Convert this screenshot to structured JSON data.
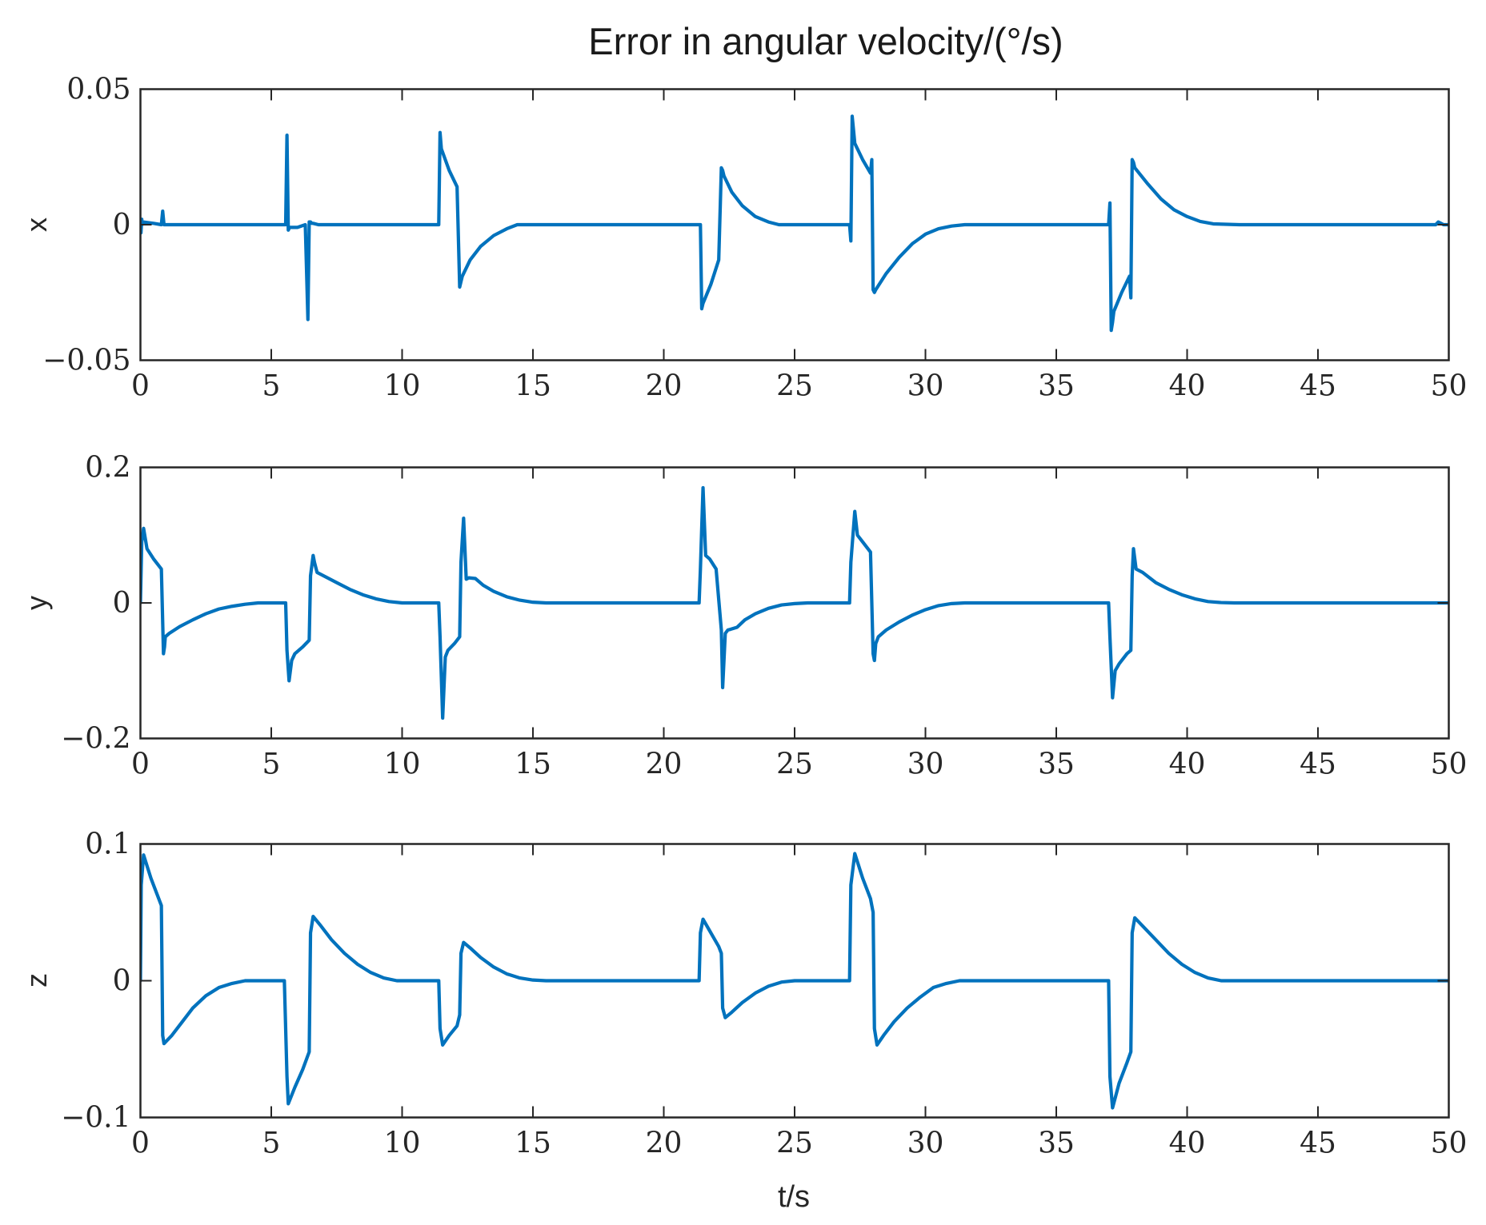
{
  "chart_data": [
    {
      "type": "line",
      "title": "Error in angular velocity/(°/s)",
      "xlabel": "",
      "ylabel": "x",
      "xlim": [
        0,
        50
      ],
      "ylim": [
        -0.05,
        0.05
      ],
      "xticks": [
        0,
        5,
        10,
        15,
        20,
        25,
        30,
        35,
        40,
        45,
        50
      ],
      "xtick_labels": [
        "0",
        "5",
        "10",
        "15",
        "20",
        "25",
        "30",
        "35",
        "40",
        "45",
        "50"
      ],
      "yticks": [
        -0.05,
        0,
        0.05
      ],
      "ytick_labels": [
        "−0.05",
        "0",
        "0.05"
      ],
      "grid": false,
      "series": [
        {
          "color": "#0072bd",
          "x": [
            0,
            0.02,
            0.05,
            0.06,
            0.1,
            0.5,
            0.8,
            0.85,
            0.9,
            0.95,
            1.0,
            1.5,
            3,
            5,
            5.55,
            5.6,
            5.65,
            5.7,
            6.0,
            6.3,
            6.4,
            6.45,
            6.5,
            6.55,
            6.6,
            6.8,
            7.5,
            9,
            11.4,
            11.45,
            11.5,
            11.8,
            12.1,
            12.2,
            12.25,
            12.3,
            12.6,
            13.0,
            13.5,
            14.0,
            14.4,
            15,
            18,
            21.4,
            21.45,
            21.5,
            21.8,
            22.1,
            22.2,
            22.25,
            22.3,
            22.6,
            23.0,
            23.5,
            24.0,
            24.4,
            25,
            27.1,
            27.15,
            27.2,
            27.25,
            27.3,
            27.6,
            27.9,
            27.95,
            28.0,
            28.05,
            28.1,
            28.5,
            29.0,
            29.5,
            30.0,
            30.5,
            31.0,
            31.5,
            32,
            35,
            37.0,
            37.05,
            37.1,
            37.15,
            37.2,
            37.5,
            37.8,
            37.85,
            37.9,
            37.95,
            38.0,
            38.5,
            39.0,
            39.5,
            40.0,
            40.5,
            41.0,
            42,
            45,
            49.5,
            49.6,
            49.8,
            50
          ],
          "y": [
            0,
            -0.003,
            0.002,
            0,
            0.001,
            0.0005,
            0,
            0.005,
            0,
            0,
            0,
            0,
            0,
            0,
            0,
            0.033,
            -0.002,
            -0.001,
            -0.001,
            0,
            -0.035,
            0.001,
            0.001,
            0.0005,
            0.0005,
            0,
            0,
            0,
            0,
            0.034,
            0.028,
            0.02,
            0.014,
            -0.023,
            -0.021,
            -0.019,
            -0.013,
            -0.008,
            -0.004,
            -0.0015,
            0,
            0,
            0,
            0,
            -0.031,
            -0.029,
            -0.022,
            -0.013,
            0.021,
            0.02,
            0.018,
            0.012,
            0.007,
            0.003,
            0.001,
            0,
            0,
            0,
            -0.006,
            0.04,
            0.035,
            0.03,
            0.024,
            0.019,
            0.024,
            -0.024,
            -0.025,
            -0.024,
            -0.018,
            -0.012,
            -0.007,
            -0.0035,
            -0.0015,
            -0.0005,
            0,
            0,
            0,
            0,
            0.008,
            -0.039,
            -0.036,
            -0.032,
            -0.025,
            -0.019,
            -0.027,
            0.024,
            0.023,
            0.021,
            0.015,
            0.0095,
            0.0055,
            0.003,
            0.0012,
            0.0003,
            0,
            0,
            0,
            0.001,
            0,
            0
          ]
        }
      ]
    },
    {
      "type": "line",
      "xlabel": "",
      "ylabel": "y",
      "xlim": [
        0,
        50
      ],
      "ylim": [
        -0.2,
        0.2
      ],
      "xticks": [
        0,
        5,
        10,
        15,
        20,
        25,
        30,
        35,
        40,
        45,
        50
      ],
      "xtick_labels": [
        "0",
        "5",
        "10",
        "15",
        "20",
        "25",
        "30",
        "35",
        "40",
        "45",
        "50"
      ],
      "yticks": [
        -0.2,
        0,
        0.2
      ],
      "ytick_labels": [
        "−0.2",
        "0",
        "0.2"
      ],
      "grid": false,
      "series": [
        {
          "color": "#0072bd",
          "x": [
            0,
            0.05,
            0.12,
            0.25,
            0.5,
            0.8,
            0.88,
            0.92,
            0.95,
            1.1,
            1.5,
            2.0,
            2.5,
            3.0,
            3.5,
            4.0,
            4.5,
            5.0,
            5.55,
            5.6,
            5.68,
            5.78,
            5.9,
            6.2,
            6.45,
            6.5,
            6.6,
            6.65,
            6.75,
            7.0,
            7.5,
            8.0,
            8.5,
            9.0,
            9.5,
            10.0,
            11.4,
            11.45,
            11.55,
            11.65,
            11.75,
            12.0,
            12.2,
            12.25,
            12.35,
            12.45,
            12.55,
            12.8,
            13.1,
            13.5,
            14.0,
            14.5,
            15.0,
            15.5,
            21.35,
            21.4,
            21.5,
            21.6,
            21.75,
            22.0,
            22.2,
            22.25,
            22.35,
            22.45,
            22.55,
            22.8,
            23.1,
            23.5,
            24.0,
            24.5,
            25.0,
            25.5,
            27.1,
            27.15,
            27.3,
            27.4,
            27.6,
            27.9,
            28.0,
            28.05,
            28.1,
            28.2,
            28.5,
            29.0,
            29.5,
            30.0,
            30.5,
            31.0,
            31.5,
            32.0,
            37.0,
            37.05,
            37.15,
            37.25,
            37.4,
            37.7,
            37.85,
            37.9,
            37.95,
            38.05,
            38.3,
            38.8,
            39.3,
            39.8,
            40.3,
            40.8,
            41.3,
            41.8,
            50
          ],
          "y": [
            0,
            0.09,
            0.11,
            0.08,
            0.065,
            0.05,
            -0.075,
            -0.065,
            -0.05,
            -0.045,
            -0.035,
            -0.025,
            -0.016,
            -0.009,
            -0.005,
            -0.002,
            0,
            0,
            0,
            -0.07,
            -0.115,
            -0.085,
            -0.075,
            -0.065,
            -0.055,
            0.04,
            0.07,
            0.06,
            0.045,
            0.04,
            0.03,
            0.02,
            0.012,
            0.006,
            0.002,
            0,
            0,
            -0.05,
            -0.17,
            -0.08,
            -0.07,
            -0.06,
            -0.05,
            0.06,
            0.125,
            0.035,
            0.037,
            0.036,
            0.026,
            0.017,
            0.009,
            0.004,
            0.001,
            0,
            0,
            0.05,
            0.17,
            0.07,
            0.065,
            0.05,
            -0.04,
            -0.125,
            -0.045,
            -0.04,
            -0.039,
            -0.036,
            -0.025,
            -0.016,
            -0.008,
            -0.003,
            -0.001,
            0,
            0,
            0.06,
            0.135,
            0.1,
            0.09,
            0.075,
            -0.075,
            -0.085,
            -0.06,
            -0.05,
            -0.04,
            -0.028,
            -0.018,
            -0.01,
            -0.004,
            -0.001,
            0,
            0,
            0,
            -0.05,
            -0.14,
            -0.1,
            -0.09,
            -0.075,
            -0.07,
            0.04,
            0.08,
            0.05,
            0.045,
            0.03,
            0.02,
            0.012,
            0.006,
            0.002,
            0.0005,
            0,
            0
          ]
        }
      ]
    },
    {
      "type": "line",
      "xlabel": "t/s",
      "ylabel": "z",
      "xlim": [
        0,
        50
      ],
      "ylim": [
        -0.1,
        0.1
      ],
      "xticks": [
        0,
        5,
        10,
        15,
        20,
        25,
        30,
        35,
        40,
        45,
        50
      ],
      "xtick_labels": [
        "0",
        "5",
        "10",
        "15",
        "20",
        "25",
        "30",
        "35",
        "40",
        "45",
        "50"
      ],
      "yticks": [
        -0.1,
        0,
        0.1
      ],
      "ytick_labels": [
        "−0.1",
        "0",
        "0.1"
      ],
      "grid": false,
      "series": [
        {
          "color": "#0072bd",
          "x": [
            0,
            0.03,
            0.12,
            0.4,
            0.8,
            0.85,
            0.9,
            1.2,
            1.6,
            2.0,
            2.5,
            3.0,
            3.5,
            4.0,
            4.5,
            5.5,
            5.6,
            5.65,
            5.9,
            6.2,
            6.45,
            6.5,
            6.6,
            6.9,
            7.3,
            7.8,
            8.3,
            8.8,
            9.3,
            9.8,
            11.4,
            11.45,
            11.55,
            11.8,
            12.1,
            12.2,
            12.25,
            12.35,
            12.6,
            13.0,
            13.5,
            14.0,
            14.5,
            15.0,
            15.5,
            21.35,
            21.4,
            21.5,
            21.8,
            22.1,
            22.2,
            22.25,
            22.35,
            22.6,
            23.0,
            23.5,
            24.0,
            24.5,
            25.0,
            27.1,
            27.15,
            27.3,
            27.6,
            27.9,
            28.0,
            28.05,
            28.15,
            28.4,
            28.8,
            29.3,
            29.8,
            30.3,
            30.8,
            31.3,
            37.0,
            37.05,
            37.15,
            37.4,
            37.7,
            37.85,
            37.9,
            38.0,
            38.3,
            38.8,
            39.3,
            39.8,
            40.3,
            40.8,
            41.3,
            50
          ],
          "y": [
            0,
            0.07,
            0.092,
            0.075,
            0.055,
            -0.04,
            -0.046,
            -0.04,
            -0.03,
            -0.02,
            -0.011,
            -0.005,
            -0.002,
            0,
            0,
            0,
            -0.07,
            -0.09,
            -0.078,
            -0.065,
            -0.052,
            0.035,
            0.047,
            0.04,
            0.03,
            0.02,
            0.012,
            0.006,
            0.002,
            0,
            0,
            -0.035,
            -0.047,
            -0.04,
            -0.033,
            -0.025,
            0.02,
            0.028,
            0.024,
            0.017,
            0.01,
            0.005,
            0.002,
            0.0005,
            0,
            0,
            0.035,
            0.045,
            0.035,
            0.025,
            0.02,
            -0.02,
            -0.027,
            -0.023,
            -0.016,
            -0.009,
            -0.004,
            -0.001,
            0,
            0,
            0.07,
            0.093,
            0.075,
            0.06,
            0.05,
            -0.035,
            -0.047,
            -0.04,
            -0.03,
            -0.02,
            -0.012,
            -0.005,
            -0.002,
            0,
            0,
            -0.07,
            -0.093,
            -0.075,
            -0.06,
            -0.052,
            0.035,
            0.046,
            0.04,
            0.03,
            0.02,
            0.012,
            0.006,
            0.002,
            0,
            0
          ]
        }
      ]
    }
  ]
}
